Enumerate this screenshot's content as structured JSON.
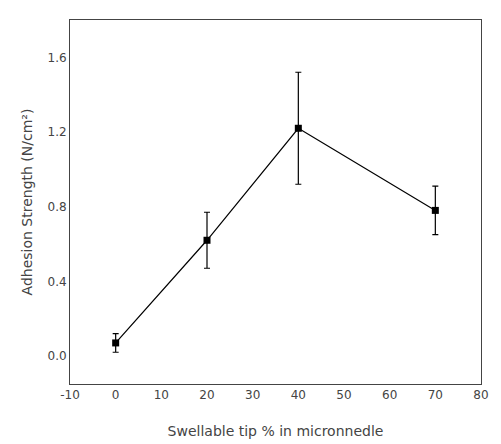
{
  "chart_data": {
    "type": "line",
    "x": [
      0,
      20,
      40,
      70
    ],
    "values": [
      0.07,
      0.62,
      1.22,
      0.78
    ],
    "yerr": [
      0.05,
      0.15,
      0.3,
      0.13
    ],
    "xlabel": "Swellable tip % in micronnedle",
    "ylabel": "Adhesion Strength (N/cm²)",
    "xlim": [
      -10,
      80
    ],
    "ylim": [
      -0.15,
      1.8
    ],
    "xticks": [
      -10,
      0,
      10,
      20,
      30,
      40,
      50,
      60,
      70,
      80
    ],
    "yticks": [
      {
        "value": 0.0,
        "label": "0.0"
      },
      0.4,
      0.8,
      1.2,
      1.6
    ],
    "color": "black",
    "marker": "square",
    "line_style": "solid",
    "grid": false
  }
}
